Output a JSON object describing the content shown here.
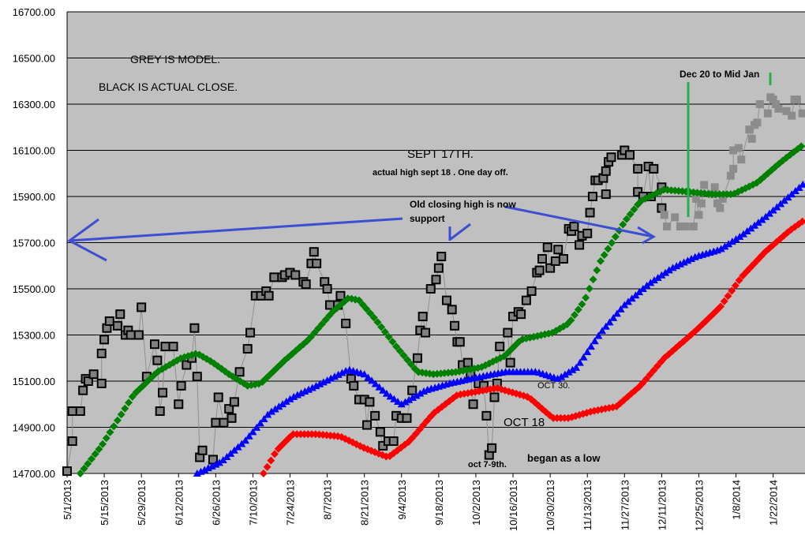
{
  "chart_data": {
    "type": "line",
    "title": "",
    "xlabel": "",
    "ylabel": "",
    "x_unit": "calendar days since 5/1/2013",
    "xlim": [
      0,
      278
    ],
    "ylim": [
      14700,
      16700
    ],
    "grid": "horizontal",
    "yticks": [
      "14700.00",
      "14900.00",
      "15100.00",
      "15300.00",
      "15500.00",
      "15700.00",
      "15900.00",
      "16100.00",
      "16300.00",
      "16500.00",
      "16700.00"
    ],
    "ytick_values": [
      14700,
      14900,
      15100,
      15300,
      15500,
      15700,
      15900,
      16100,
      16300,
      16500,
      16700
    ],
    "xticks": [
      "5/1/2013",
      "5/15/2013",
      "5/29/2013",
      "6/12/2013",
      "6/26/2013",
      "7/10/2013",
      "7/24/2013",
      "8/7/2013",
      "8/21/2013",
      "9/4/2013",
      "9/18/2013",
      "10/2/2013",
      "10/16/2013",
      "10/30/2013",
      "11/13/2013",
      "11/27/2013",
      "12/11/2013",
      "12/25/2013",
      "1/8/2014",
      "1/22/2014"
    ],
    "xtick_days": [
      0,
      14,
      28,
      42,
      56,
      70,
      84,
      98,
      112,
      126,
      140,
      154,
      168,
      182,
      196,
      210,
      224,
      238,
      252,
      266
    ],
    "series": [
      {
        "name": "actual close",
        "color": "#808080",
        "marker": "square-bordered",
        "points": [
          [
            0,
            14710
          ],
          [
            2,
            14840
          ],
          [
            2,
            14970
          ],
          [
            5,
            14970
          ],
          [
            6,
            15060
          ],
          [
            7,
            15110
          ],
          [
            8,
            15100
          ],
          [
            10,
            15130
          ],
          [
            13,
            15090
          ],
          [
            13,
            15220
          ],
          [
            14,
            15280
          ],
          [
            15,
            15330
          ],
          [
            16,
            15360
          ],
          [
            19,
            15340
          ],
          [
            20,
            15390
          ],
          [
            22,
            15300
          ],
          [
            23,
            15320
          ],
          [
            24,
            15300
          ],
          [
            27,
            15300
          ],
          [
            28,
            15420
          ],
          [
            30,
            15120
          ],
          [
            33,
            15260
          ],
          [
            34,
            15190
          ],
          [
            35,
            14970
          ],
          [
            36,
            15050
          ],
          [
            37,
            15250
          ],
          [
            40,
            15250
          ],
          [
            42,
            15000
          ],
          [
            43,
            15080
          ],
          [
            45,
            15170
          ],
          [
            47,
            15200
          ],
          [
            48,
            15330
          ],
          [
            49,
            15120
          ],
          [
            50,
            14770
          ],
          [
            51,
            14800
          ],
          [
            55,
            14760
          ],
          [
            56,
            14920
          ],
          [
            57,
            15030
          ],
          [
            59,
            14920
          ],
          [
            61,
            14980
          ],
          [
            62,
            14940
          ],
          [
            63,
            15010
          ],
          [
            65,
            15140
          ],
          [
            68,
            15240
          ],
          [
            69,
            15310
          ],
          [
            71,
            15470
          ],
          [
            73,
            15470
          ],
          [
            75,
            15490
          ],
          [
            76,
            15470
          ],
          [
            78,
            15550
          ],
          [
            81,
            15550
          ],
          [
            82,
            15560
          ],
          [
            84,
            15570
          ],
          [
            86,
            15560
          ],
          [
            89,
            15530
          ],
          [
            90,
            15520
          ],
          [
            92,
            15610
          ],
          [
            93,
            15660
          ],
          [
            94,
            15610
          ],
          [
            97,
            15530
          ],
          [
            98,
            15500
          ],
          [
            99,
            15430
          ],
          [
            102,
            15430
          ],
          [
            103,
            15470
          ],
          [
            105,
            15350
          ],
          [
            107,
            15110
          ],
          [
            108,
            15080
          ],
          [
            110,
            15020
          ],
          [
            112,
            15020
          ],
          [
            113,
            14910
          ],
          [
            114,
            15010
          ],
          [
            116,
            14950
          ],
          [
            118,
            14880
          ],
          [
            119,
            14820
          ],
          [
            121,
            14840
          ],
          [
            123,
            14840
          ],
          [
            124,
            14950
          ],
          [
            126,
            14940
          ],
          [
            128,
            14940
          ],
          [
            130,
            15060
          ],
          [
            132,
            15200
          ],
          [
            133,
            15320
          ],
          [
            134,
            15380
          ],
          [
            135,
            15310
          ],
          [
            137,
            15500
          ],
          [
            139,
            15540
          ],
          [
            140,
            15590
          ],
          [
            141,
            15640
          ],
          [
            143,
            15450
          ],
          [
            145,
            15410
          ],
          [
            146,
            15340
          ],
          [
            147,
            15270
          ],
          [
            148,
            15270
          ],
          [
            149,
            15170
          ],
          [
            151,
            15180
          ],
          [
            152,
            15130
          ],
          [
            153,
            15000
          ],
          [
            155,
            15090
          ],
          [
            157,
            15080
          ],
          [
            158,
            14950
          ],
          [
            159,
            14780
          ],
          [
            160,
            14810
          ],
          [
            161,
            15030
          ],
          [
            162,
            15090
          ],
          [
            163,
            15250
          ],
          [
            166,
            15310
          ],
          [
            167,
            15180
          ],
          [
            168,
            15380
          ],
          [
            170,
            15400
          ],
          [
            171,
            15390
          ],
          [
            173,
            15450
          ],
          [
            175,
            15490
          ],
          [
            177,
            15570
          ],
          [
            178,
            15580
          ],
          [
            179,
            15630
          ],
          [
            181,
            15680
          ],
          [
            182,
            15590
          ],
          [
            184,
            15620
          ],
          [
            185,
            15670
          ],
          [
            187,
            15630
          ],
          [
            189,
            15760
          ],
          [
            190,
            15750
          ],
          [
            191,
            15770
          ],
          [
            193,
            15690
          ],
          [
            194,
            15730
          ],
          [
            196,
            15740
          ],
          [
            197,
            15830
          ],
          [
            198,
            15900
          ],
          [
            199,
            15970
          ],
          [
            200,
            15970
          ],
          [
            202,
            15980
          ],
          [
            203,
            16010
          ],
          [
            203,
            15910
          ],
          [
            204,
            16050
          ],
          [
            205,
            16070
          ],
          [
            209,
            16080
          ],
          [
            210,
            16100
          ],
          [
            212,
            16080
          ],
          [
            215,
            16020
          ],
          [
            215,
            15920
          ],
          [
            217,
            15900
          ],
          [
            219,
            16030
          ],
          [
            220,
            15900
          ],
          [
            221,
            16020
          ],
          [
            224,
            15940
          ],
          [
            224,
            15850
          ]
        ]
      },
      {
        "name": "grey model",
        "color": "#8c8c8c",
        "marker": "square",
        "points": [
          [
            225,
            15820
          ],
          [
            226,
            15770
          ],
          [
            229,
            15810
          ],
          [
            231,
            15770
          ],
          [
            233,
            15770
          ],
          [
            236,
            15770
          ],
          [
            237,
            15890
          ],
          [
            238,
            15820
          ],
          [
            239,
            15870
          ],
          [
            240,
            15950
          ],
          [
            243,
            15910
          ],
          [
            244,
            15940
          ],
          [
            245,
            15870
          ],
          [
            246,
            15850
          ],
          [
            247,
            15890
          ],
          [
            250,
            15990
          ],
          [
            251,
            16020
          ],
          [
            251,
            16100
          ],
          [
            253,
            16110
          ],
          [
            254,
            16060
          ],
          [
            257,
            16190
          ],
          [
            258,
            16150
          ],
          [
            259,
            16210
          ],
          [
            260,
            16220
          ],
          [
            261,
            16300
          ],
          [
            264,
            16260
          ],
          [
            265,
            16330
          ],
          [
            266,
            16320
          ],
          [
            267,
            16300
          ],
          [
            268,
            16280
          ],
          [
            271,
            16270
          ],
          [
            273,
            16250
          ],
          [
            274,
            16320
          ],
          [
            275,
            16320
          ],
          [
            277,
            16260
          ]
        ]
      },
      {
        "name": "green moving average",
        "color": "#008000",
        "marker": "diamond",
        "points": [
          [
            5,
            14700
          ],
          [
            13,
            14820
          ],
          [
            25,
            15040
          ],
          [
            34,
            15140
          ],
          [
            43,
            15200
          ],
          [
            49,
            15220
          ],
          [
            55,
            15180
          ],
          [
            61,
            15130
          ],
          [
            68,
            15080
          ],
          [
            73,
            15090
          ],
          [
            82,
            15190
          ],
          [
            91,
            15280
          ],
          [
            100,
            15400
          ],
          [
            106,
            15460
          ],
          [
            110,
            15450
          ],
          [
            116,
            15370
          ],
          [
            124,
            15250
          ],
          [
            132,
            15140
          ],
          [
            138,
            15130
          ],
          [
            147,
            15140
          ],
          [
            156,
            15160
          ],
          [
            165,
            15210
          ],
          [
            171,
            15280
          ],
          [
            183,
            15310
          ],
          [
            189,
            15350
          ],
          [
            195,
            15450
          ],
          [
            201,
            15620
          ],
          [
            210,
            15790
          ],
          [
            216,
            15880
          ],
          [
            225,
            15930
          ],
          [
            234,
            15920
          ],
          [
            243,
            15910
          ],
          [
            251,
            15910
          ],
          [
            260,
            15960
          ],
          [
            269,
            16050
          ],
          [
            278,
            16130
          ]
        ]
      },
      {
        "name": "blue moving average",
        "color": "#0000ff",
        "marker": "triangle",
        "points": [
          [
            49,
            14700
          ],
          [
            58,
            14750
          ],
          [
            67,
            14840
          ],
          [
            76,
            14960
          ],
          [
            85,
            15030
          ],
          [
            94,
            15080
          ],
          [
            106,
            15150
          ],
          [
            112,
            15130
          ],
          [
            121,
            15040
          ],
          [
            126,
            15000
          ],
          [
            135,
            15060
          ],
          [
            144,
            15090
          ],
          [
            156,
            15120
          ],
          [
            165,
            15140
          ],
          [
            177,
            15140
          ],
          [
            185,
            15110
          ],
          [
            192,
            15160
          ],
          [
            201,
            15310
          ],
          [
            210,
            15430
          ],
          [
            219,
            15520
          ],
          [
            228,
            15590
          ],
          [
            237,
            15640
          ],
          [
            246,
            15670
          ],
          [
            254,
            15730
          ],
          [
            263,
            15810
          ],
          [
            272,
            15900
          ],
          [
            278,
            15960
          ]
        ]
      },
      {
        "name": "red moving average",
        "color": "#ff0000",
        "marker": "diamond",
        "points": [
          [
            74,
            14700
          ],
          [
            79,
            14800
          ],
          [
            85,
            14870
          ],
          [
            94,
            14870
          ],
          [
            103,
            14860
          ],
          [
            112,
            14810
          ],
          [
            121,
            14770
          ],
          [
            129,
            14840
          ],
          [
            138,
            14960
          ],
          [
            147,
            15040
          ],
          [
            162,
            15070
          ],
          [
            174,
            15030
          ],
          [
            183,
            14940
          ],
          [
            189,
            14940
          ],
          [
            198,
            14970
          ],
          [
            207,
            14990
          ],
          [
            216,
            15080
          ],
          [
            225,
            15200
          ],
          [
            237,
            15320
          ],
          [
            246,
            15420
          ],
          [
            254,
            15550
          ],
          [
            263,
            15660
          ],
          [
            272,
            15750
          ],
          [
            278,
            15800
          ]
        ]
      }
    ],
    "annotations": {
      "grey_is_model": "GREY IS MODEL.",
      "black_is_actual": "BLACK IS ACTUAL CLOSE.",
      "sept17": "SEPT 17TH.",
      "actual_high": "actual high sept 18 . One day off.",
      "old_high_1": "Old closing high is now",
      "old_high_2": "support",
      "dec20": "Dec 20 to Mid Jan",
      "oct30": "OCT 30.",
      "oct18": "OCT 18",
      "oct79": "oct 7-9th.",
      "began_low": "began as a low"
    }
  }
}
